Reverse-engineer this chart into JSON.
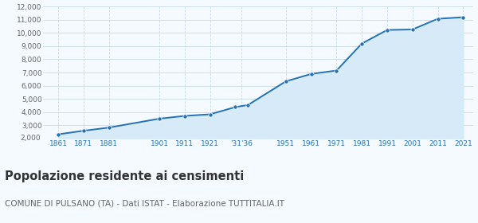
{
  "years": [
    1861,
    1871,
    1881,
    1901,
    1911,
    1921,
    1931,
    1936,
    1951,
    1961,
    1971,
    1981,
    1991,
    2001,
    2011,
    2021
  ],
  "population": [
    2300,
    2570,
    2810,
    3490,
    3700,
    3820,
    4370,
    4530,
    6330,
    6890,
    7150,
    9200,
    10230,
    10270,
    11080,
    11200
  ],
  "x_tick_labels": [
    "1861",
    "1871",
    "1881",
    "1901",
    "1911",
    "1921",
    "'31'36",
    "1951",
    "1961",
    "1971",
    "1981",
    "1991",
    "2001",
    "2011",
    "2021"
  ],
  "x_tick_positions": [
    1861,
    1871,
    1881,
    1901,
    1911,
    1921,
    1933.5,
    1951,
    1961,
    1971,
    1981,
    1991,
    2001,
    2011,
    2021
  ],
  "ylim": [
    2000,
    12000
  ],
  "yticks": [
    3000,
    4000,
    5000,
    6000,
    7000,
    8000,
    9000,
    10000,
    11000,
    12000
  ],
  "xlim_min": 1855,
  "xlim_max": 2025,
  "line_color": "#2471b5",
  "fill_color": "#d6eaf8",
  "marker_color": "#2471b5",
  "background_color": "#f4faff",
  "grid_color": "#c8dcea",
  "title": "Popolazione residente ai censimenti",
  "subtitle": "COMUNE DI PULSANO (TA) - Dati ISTAT - Elaborazione TUTTITALIA.IT",
  "title_fontsize": 10.5,
  "subtitle_fontsize": 7.5
}
